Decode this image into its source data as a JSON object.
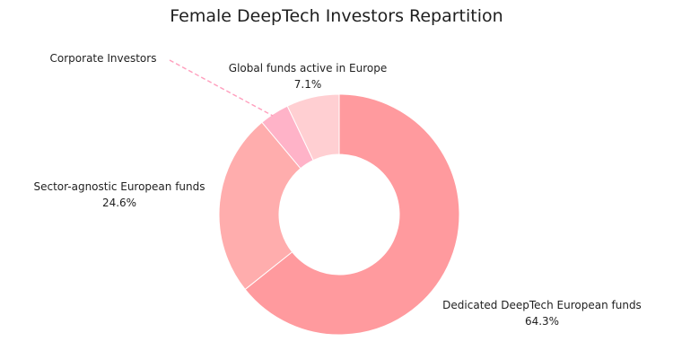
{
  "chart_data": {
    "type": "pie",
    "title": "Female DeepTech Investors Repartition",
    "donut": true,
    "start": "top",
    "direction": "clockwise",
    "slices": [
      {
        "key": "dedicated",
        "label": "Dedicated DeepTech European funds",
        "value": 64.3,
        "value_label": "64.3%",
        "color": "#ff9a9e"
      },
      {
        "key": "sector-agnostic",
        "label": "Sector-agnostic European funds",
        "value": 24.6,
        "value_label": "24.6%",
        "color": "#ffadad"
      },
      {
        "key": "corporate",
        "label": "Corporate Investors",
        "value": 4.0,
        "value_label": "",
        "color": "#ffb3c8"
      },
      {
        "key": "global",
        "label": "Global funds active in Europe",
        "value": 7.1,
        "value_label": "7.1%",
        "color": "#ffcfd2"
      }
    ]
  }
}
